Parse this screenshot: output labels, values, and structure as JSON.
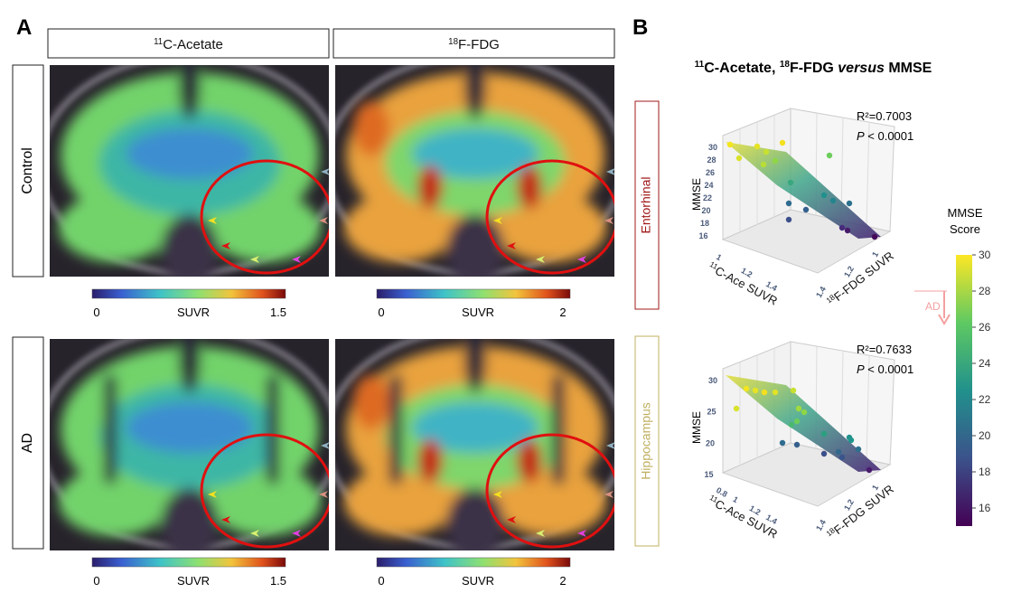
{
  "panel_a": {
    "label": "A",
    "columns": [
      {
        "isotope": "11",
        "name": "C-Acetate"
      },
      {
        "isotope": "18",
        "name": "F-FDG"
      }
    ],
    "rows": [
      "Control",
      "AD"
    ],
    "colorbars": [
      {
        "min": 0,
        "label": "SUVR",
        "max": 1.5
      },
      {
        "min": 0,
        "label": "SUVR",
        "max": 2
      }
    ]
  },
  "panel_b": {
    "label": "B",
    "title": {
      "isotope1": "11",
      "part1": "C-Acetate, ",
      "isotope2": "18",
      "part2": "F-FDG ",
      "italic": "versus",
      "part3": " MMSE"
    },
    "plots": [
      {
        "region": "Entorhinal",
        "r2": "R²=0.7003",
        "p_symbol": "P",
        "p_text": " < 0.0001",
        "z_label": "MMSE",
        "x_label": {
          "isotope": "11",
          "name": "C-Ace SUVR"
        },
        "y_label": {
          "isotope": "18",
          "name": "F-FDG SUVR"
        },
        "z_ticks": [
          30,
          28,
          26,
          24,
          22,
          20,
          18,
          16
        ],
        "x_ticks": [
          1,
          1.2,
          1.4
        ],
        "y_ticks": [
          1,
          1.2,
          1.4
        ]
      },
      {
        "region": "Hippocampus",
        "r2": "R²=0.7633",
        "p_symbol": "P",
        "p_text": " < 0.0001",
        "z_label": "MMSE",
        "x_label": {
          "isotope": "11",
          "name": "C-Ace SUVR"
        },
        "y_label": {
          "isotope": "18",
          "name": "F-FDG SUVR"
        },
        "z_ticks": [
          30,
          25,
          20,
          15
        ],
        "x_ticks": [
          0.8,
          1,
          1.2,
          1.4
        ],
        "y_ticks": [
          1,
          1.2,
          1.4
        ]
      }
    ],
    "colorbar": {
      "title": [
        "MMSE",
        "Score"
      ],
      "range": [
        15,
        30
      ],
      "ticks": [
        30,
        28,
        26,
        24,
        22,
        20,
        18,
        16
      ],
      "threshold_label": "AD"
    }
  }
}
